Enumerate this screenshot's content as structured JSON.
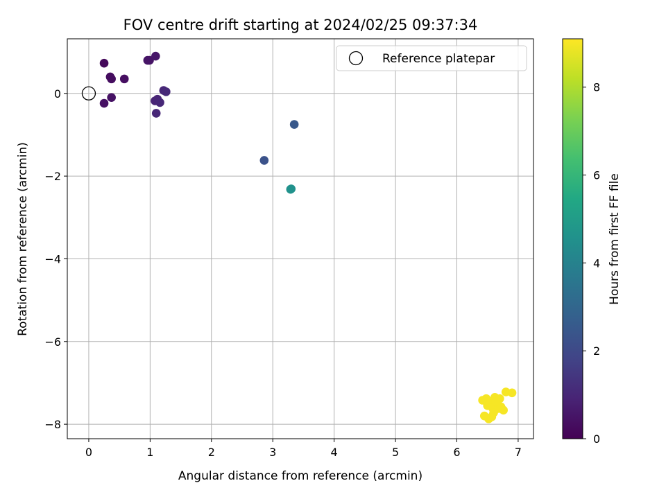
{
  "chart_data": {
    "type": "scatter",
    "title": "FOV centre drift starting at 2024/02/25 09:37:34",
    "xlabel": "Angular distance from reference (arcmin)",
    "ylabel": "Rotation from reference (arcmin)",
    "xlim": [
      -0.35,
      7.25
    ],
    "ylim": [
      -8.35,
      1.32
    ],
    "xticks": [
      0,
      1,
      2,
      3,
      4,
      5,
      6,
      7
    ],
    "yticks": [
      -8,
      -6,
      -4,
      -2,
      0
    ],
    "grid": true,
    "legend": {
      "placement": "top-right",
      "entries": [
        "Reference platepar"
      ]
    },
    "reference_point": {
      "x": 0,
      "y": 0
    },
    "colorbar": {
      "label": "Hours from first FF file",
      "range": [
        0,
        9.1
      ],
      "ticks": [
        0,
        2,
        4,
        6,
        8
      ],
      "colormap": "viridis"
    },
    "points": [
      {
        "x": 0.25,
        "y": 0.73,
        "hours": 0.2
      },
      {
        "x": 0.35,
        "y": 0.4,
        "hours": 0.3
      },
      {
        "x": 0.37,
        "y": 0.35,
        "hours": 0.3
      },
      {
        "x": 0.58,
        "y": 0.35,
        "hours": 0.35
      },
      {
        "x": 0.25,
        "y": -0.24,
        "hours": 0.4
      },
      {
        "x": 0.37,
        "y": -0.1,
        "hours": 0.45
      },
      {
        "x": 0.96,
        "y": 0.8,
        "hours": 0.5
      },
      {
        "x": 0.99,
        "y": 0.8,
        "hours": 0.5
      },
      {
        "x": 1.09,
        "y": 0.9,
        "hours": 0.55
      },
      {
        "x": 1.08,
        "y": -0.18,
        "hours": 0.9
      },
      {
        "x": 1.12,
        "y": -0.14,
        "hours": 0.95
      },
      {
        "x": 1.16,
        "y": -0.22,
        "hours": 1.0
      },
      {
        "x": 1.22,
        "y": 0.07,
        "hours": 1.0
      },
      {
        "x": 1.26,
        "y": 0.04,
        "hours": 1.05
      },
      {
        "x": 1.1,
        "y": -0.48,
        "hours": 1.0
      },
      {
        "x": 2.86,
        "y": -1.62,
        "hours": 2.3
      },
      {
        "x": 3.35,
        "y": -0.75,
        "hours": 2.5
      },
      {
        "x": 3.3,
        "y": -2.31,
        "hours": 4.5
      },
      {
        "x": 3.29,
        "y": -2.32,
        "hours": 4.6
      },
      {
        "x": 6.42,
        "y": -7.42,
        "hours": 9.0
      },
      {
        "x": 6.48,
        "y": -7.38,
        "hours": 9.0
      },
      {
        "x": 6.5,
        "y": -7.55,
        "hours": 9.0
      },
      {
        "x": 6.55,
        "y": -7.48,
        "hours": 9.0
      },
      {
        "x": 6.58,
        "y": -7.6,
        "hours": 9.0
      },
      {
        "x": 6.62,
        "y": -7.35,
        "hours": 9.0
      },
      {
        "x": 6.6,
        "y": -7.72,
        "hours": 9.0
      },
      {
        "x": 6.45,
        "y": -7.8,
        "hours": 9.0
      },
      {
        "x": 6.52,
        "y": -7.87,
        "hours": 9.0
      },
      {
        "x": 6.57,
        "y": -7.82,
        "hours": 9.0
      },
      {
        "x": 6.66,
        "y": -7.5,
        "hours": 9.0
      },
      {
        "x": 6.68,
        "y": -7.62,
        "hours": 9.0
      },
      {
        "x": 6.72,
        "y": -7.58,
        "hours": 9.0
      },
      {
        "x": 6.76,
        "y": -7.66,
        "hours": 9.0
      },
      {
        "x": 6.7,
        "y": -7.38,
        "hours": 9.0
      },
      {
        "x": 6.8,
        "y": -7.22,
        "hours": 9.0
      },
      {
        "x": 6.9,
        "y": -7.24,
        "hours": 9.0
      },
      {
        "x": 6.64,
        "y": -7.45,
        "hours": 9.0
      }
    ]
  }
}
